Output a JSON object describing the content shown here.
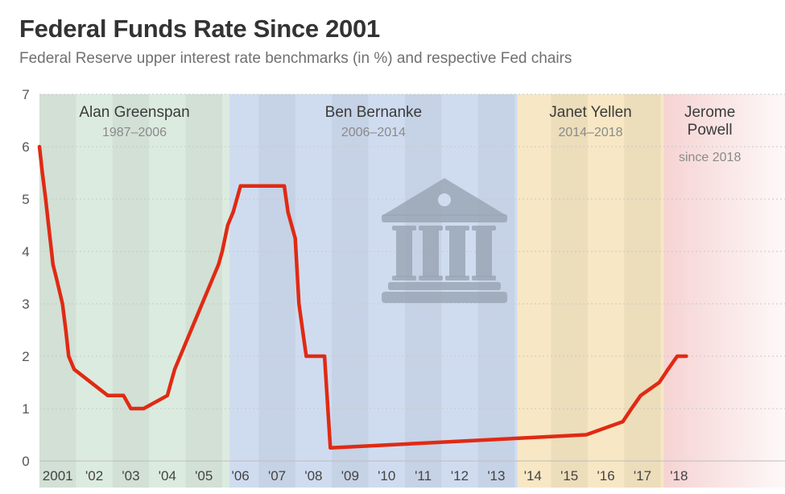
{
  "title": "Federal Funds Rate Since 2001",
  "subtitle": "Federal Reserve upper interest rate benchmarks (in %) and respective Fed chairs",
  "icon": "bank-building-icon",
  "colors": {
    "line": "#e02a14",
    "greenspan": "#dcebdf",
    "bernanke": "#cfdcf0",
    "yellen": "#f7e7c4",
    "powell": "#f6d3d3",
    "stripe": "rgba(0,0,0,0.045)",
    "icon": "#9aa7b5"
  },
  "chairs": [
    {
      "name": "Alan Greenspan",
      "years": "1987–2006",
      "start": 2001.0,
      "end": 2006.2,
      "color_key": "greenspan"
    },
    {
      "name": "Ben Bernanke",
      "years": "2006–2014",
      "start": 2006.2,
      "end": 2014.08,
      "color_key": "bernanke"
    },
    {
      "name": "Janet Yellen",
      "years": "2014–2018",
      "start": 2014.08,
      "end": 2018.08,
      "color_key": "yellen"
    },
    {
      "name": "Jerome Powell",
      "name_lines": [
        "Jerome",
        "Powell"
      ],
      "years": "since 2018",
      "start": 2018.08,
      "end": 2021.4,
      "color_key": "powell"
    }
  ],
  "chart_data": {
    "type": "line",
    "title": "Federal Funds Rate Since 2001",
    "subtitle": "Federal Reserve upper interest rate benchmarks (in %) and respective Fed chairs",
    "xlabel": "",
    "ylabel": "",
    "ylim": [
      0,
      7
    ],
    "xlim": [
      2001.0,
      2021.4
    ],
    "y_ticks": [
      "0",
      "1",
      "2",
      "3",
      "4",
      "5",
      "6",
      "7"
    ],
    "x_ticks": [
      {
        "label": "2001",
        "x": 2001.5
      },
      {
        "label": "'02",
        "x": 2002.5
      },
      {
        "label": "'03",
        "x": 2003.5
      },
      {
        "label": "'04",
        "x": 2004.5
      },
      {
        "label": "'05",
        "x": 2005.5
      },
      {
        "label": "'06",
        "x": 2006.5
      },
      {
        "label": "'07",
        "x": 2007.5
      },
      {
        "label": "'08",
        "x": 2008.5
      },
      {
        "label": "'09",
        "x": 2009.5
      },
      {
        "label": "'10",
        "x": 2010.5
      },
      {
        "label": "'11",
        "x": 2011.5
      },
      {
        "label": "'12",
        "x": 2012.5
      },
      {
        "label": "'13",
        "x": 2013.5
      },
      {
        "label": "'14",
        "x": 2014.5
      },
      {
        "label": "'15",
        "x": 2015.5
      },
      {
        "label": "'16",
        "x": 2016.5
      },
      {
        "label": "'17",
        "x": 2017.5
      },
      {
        "label": "'18",
        "x": 2018.5
      }
    ],
    "grid": true,
    "legend": "none",
    "series": [
      {
        "x": [
          2001.0,
          2001.08,
          2001.17,
          2001.25,
          2001.33,
          2001.37,
          2001.46,
          2001.63,
          2001.72,
          2001.8,
          2001.95,
          2002.87,
          2002.95,
          2003.3,
          2003.5,
          2003.85,
          2004.5,
          2004.6,
          2004.7,
          2004.85,
          2005.0,
          2005.15,
          2005.3,
          2005.45,
          2005.6,
          2005.75,
          2005.9,
          2006.0,
          2006.15,
          2006.3,
          2006.5,
          2007.7,
          2007.8,
          2007.9,
          2008.0,
          2008.1,
          2008.25,
          2008.3,
          2008.8,
          2008.96,
          2015.96,
          2016.96,
          2017.2,
          2017.45,
          2017.96,
          2018.2,
          2018.45,
          2018.7
        ],
        "y": [
          6.0,
          5.5,
          5.0,
          4.5,
          4.0,
          3.75,
          3.5,
          3.0,
          2.5,
          2.0,
          1.75,
          1.25,
          1.25,
          1.25,
          1.0,
          1.0,
          1.25,
          1.5,
          1.75,
          2.0,
          2.25,
          2.5,
          2.75,
          3.0,
          3.25,
          3.5,
          3.75,
          4.0,
          4.5,
          4.75,
          5.25,
          5.25,
          4.75,
          4.5,
          4.25,
          3.0,
          2.25,
          2.0,
          2.0,
          0.25,
          0.5,
          0.75,
          1.0,
          1.25,
          1.5,
          1.75,
          2.0,
          2.0
        ]
      }
    ]
  }
}
